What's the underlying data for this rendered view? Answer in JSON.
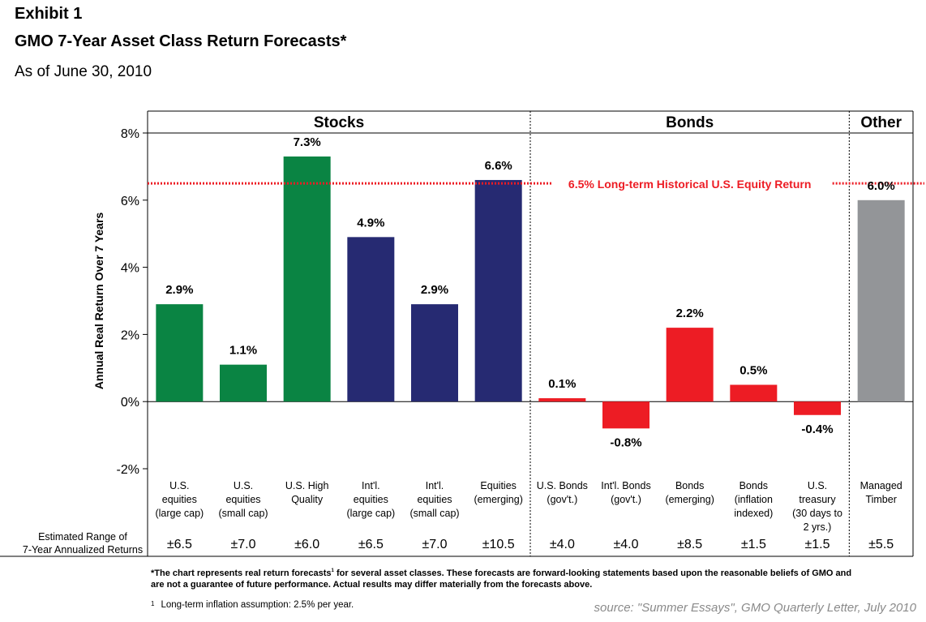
{
  "header": {
    "exhibit": "Exhibit 1",
    "title": "GMO 7-Year Asset Class Return Forecasts*",
    "subtitle": "As of June 30, 2010"
  },
  "chart_data": {
    "type": "bar",
    "ylabel": "Annual Real Return Over 7 Years",
    "ylim": [
      -2,
      8
    ],
    "yticks": [
      -2,
      0,
      2,
      4,
      6,
      8
    ],
    "ytick_labels": [
      "-2%",
      "0%",
      "2%",
      "4%",
      "6%",
      "8%"
    ],
    "groups": [
      {
        "name": "Stocks",
        "count": 6
      },
      {
        "name": "Bonds",
        "count": 5
      },
      {
        "name": "Other",
        "count": 1
      }
    ],
    "categories": [
      [
        "U.S.",
        "equities",
        "(large cap)"
      ],
      [
        "U.S.",
        "equities",
        "(small cap)"
      ],
      [
        "U.S. High",
        "Quality"
      ],
      [
        "Int'l.",
        "equities",
        "(large cap)"
      ],
      [
        "Int'l.",
        "equities",
        "(small cap)"
      ],
      [
        "Equities",
        "(emerging)"
      ],
      [
        "U.S. Bonds",
        "(gov't.)"
      ],
      [
        "Int'l. Bonds",
        "(gov't.)"
      ],
      [
        "Bonds",
        "(emerging)"
      ],
      [
        "Bonds",
        "(inflation",
        "indexed)"
      ],
      [
        "U.S.",
        "treasury",
        "(30 days to",
        "2 yrs.)"
      ],
      [
        "Managed",
        "Timber"
      ]
    ],
    "values": [
      2.9,
      1.1,
      7.3,
      4.9,
      2.9,
      6.6,
      0.1,
      -0.8,
      2.2,
      0.5,
      -0.4,
      6.0
    ],
    "value_labels": [
      "2.9%",
      "1.1%",
      "7.3%",
      "4.9%",
      "2.9%",
      "6.6%",
      "0.1%",
      "-0.8%",
      "2.2%",
      "0.5%",
      "-0.4%",
      "6.0%"
    ],
    "bar_colors": [
      "#0a8443",
      "#0a8443",
      "#0a8443",
      "#262a72",
      "#262a72",
      "#262a72",
      "#ed1c24",
      "#ed1c24",
      "#ed1c24",
      "#ed1c24",
      "#ed1c24",
      "#939598"
    ],
    "reference_line": {
      "value": 6.5,
      "label": "6.5% Long-term Historical U.S. Equity Return",
      "color": "#ed1c24"
    },
    "range_label": [
      "Estimated Range of",
      "7-Year Annualized Returns"
    ],
    "ranges": [
      "±6.5",
      "±7.0",
      "±6.0",
      "±6.5",
      "±7.0",
      "±10.5",
      "±4.0",
      "±4.0",
      "±8.5",
      "±1.5",
      "±1.5",
      "±5.5"
    ]
  },
  "footnotes": {
    "line1": "*The chart represents real return forecasts",
    "line1_sup": "1",
    "line1_rest": " for several asset classes.  These forecasts are forward-looking statements based upon the reasonable beliefs of GMO and",
    "line2": "are not a guarantee of future performance. Actual results may differ materially from the forecasts above.",
    "inflation_sup": "1",
    "inflation": "Long-term inflation assumption:  2.5% per year.",
    "source": "source: \"Summer Essays\", GMO Quarterly Letter, July 2010"
  }
}
